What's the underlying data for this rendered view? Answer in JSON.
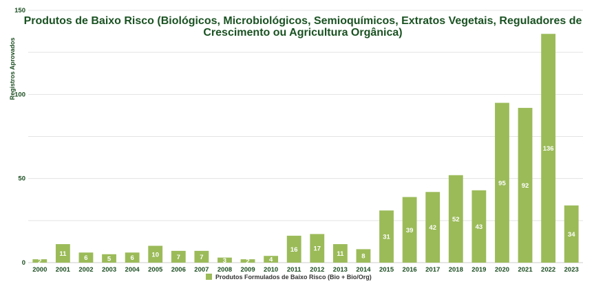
{
  "chart_data": {
    "type": "bar",
    "title_lines": [
      "Produtos de Baixo Risco (Biológicos, Microbiológicos, Semioquímicos, Extratos Vegetais, Reguladores de",
      "Crescimento ou Agricultura Orgânica)"
    ],
    "xlabel": "",
    "ylabel": "Registros Aprovados",
    "ylim": [
      0,
      150
    ],
    "yticks": [
      0,
      50,
      100,
      150
    ],
    "grid": true,
    "legend_position": "bottom",
    "categories": [
      "2000",
      "2001",
      "2002",
      "2003",
      "2004",
      "2005",
      "2006",
      "2007",
      "2008",
      "2009",
      "2010",
      "2011",
      "2012",
      "2013",
      "2014",
      "2015",
      "2016",
      "2017",
      "2018",
      "2019",
      "2020",
      "2021",
      "2022",
      "2023"
    ],
    "series": [
      {
        "name": "Produtos Formulados de Baixo Risco (Bio + Bio/Org)",
        "color": "#9bbb59",
        "values": [
          2,
          11,
          6,
          5,
          6,
          10,
          7,
          7,
          3,
          2,
          4,
          16,
          17,
          11,
          8,
          31,
          39,
          42,
          52,
          43,
          95,
          92,
          136,
          34
        ]
      }
    ]
  }
}
